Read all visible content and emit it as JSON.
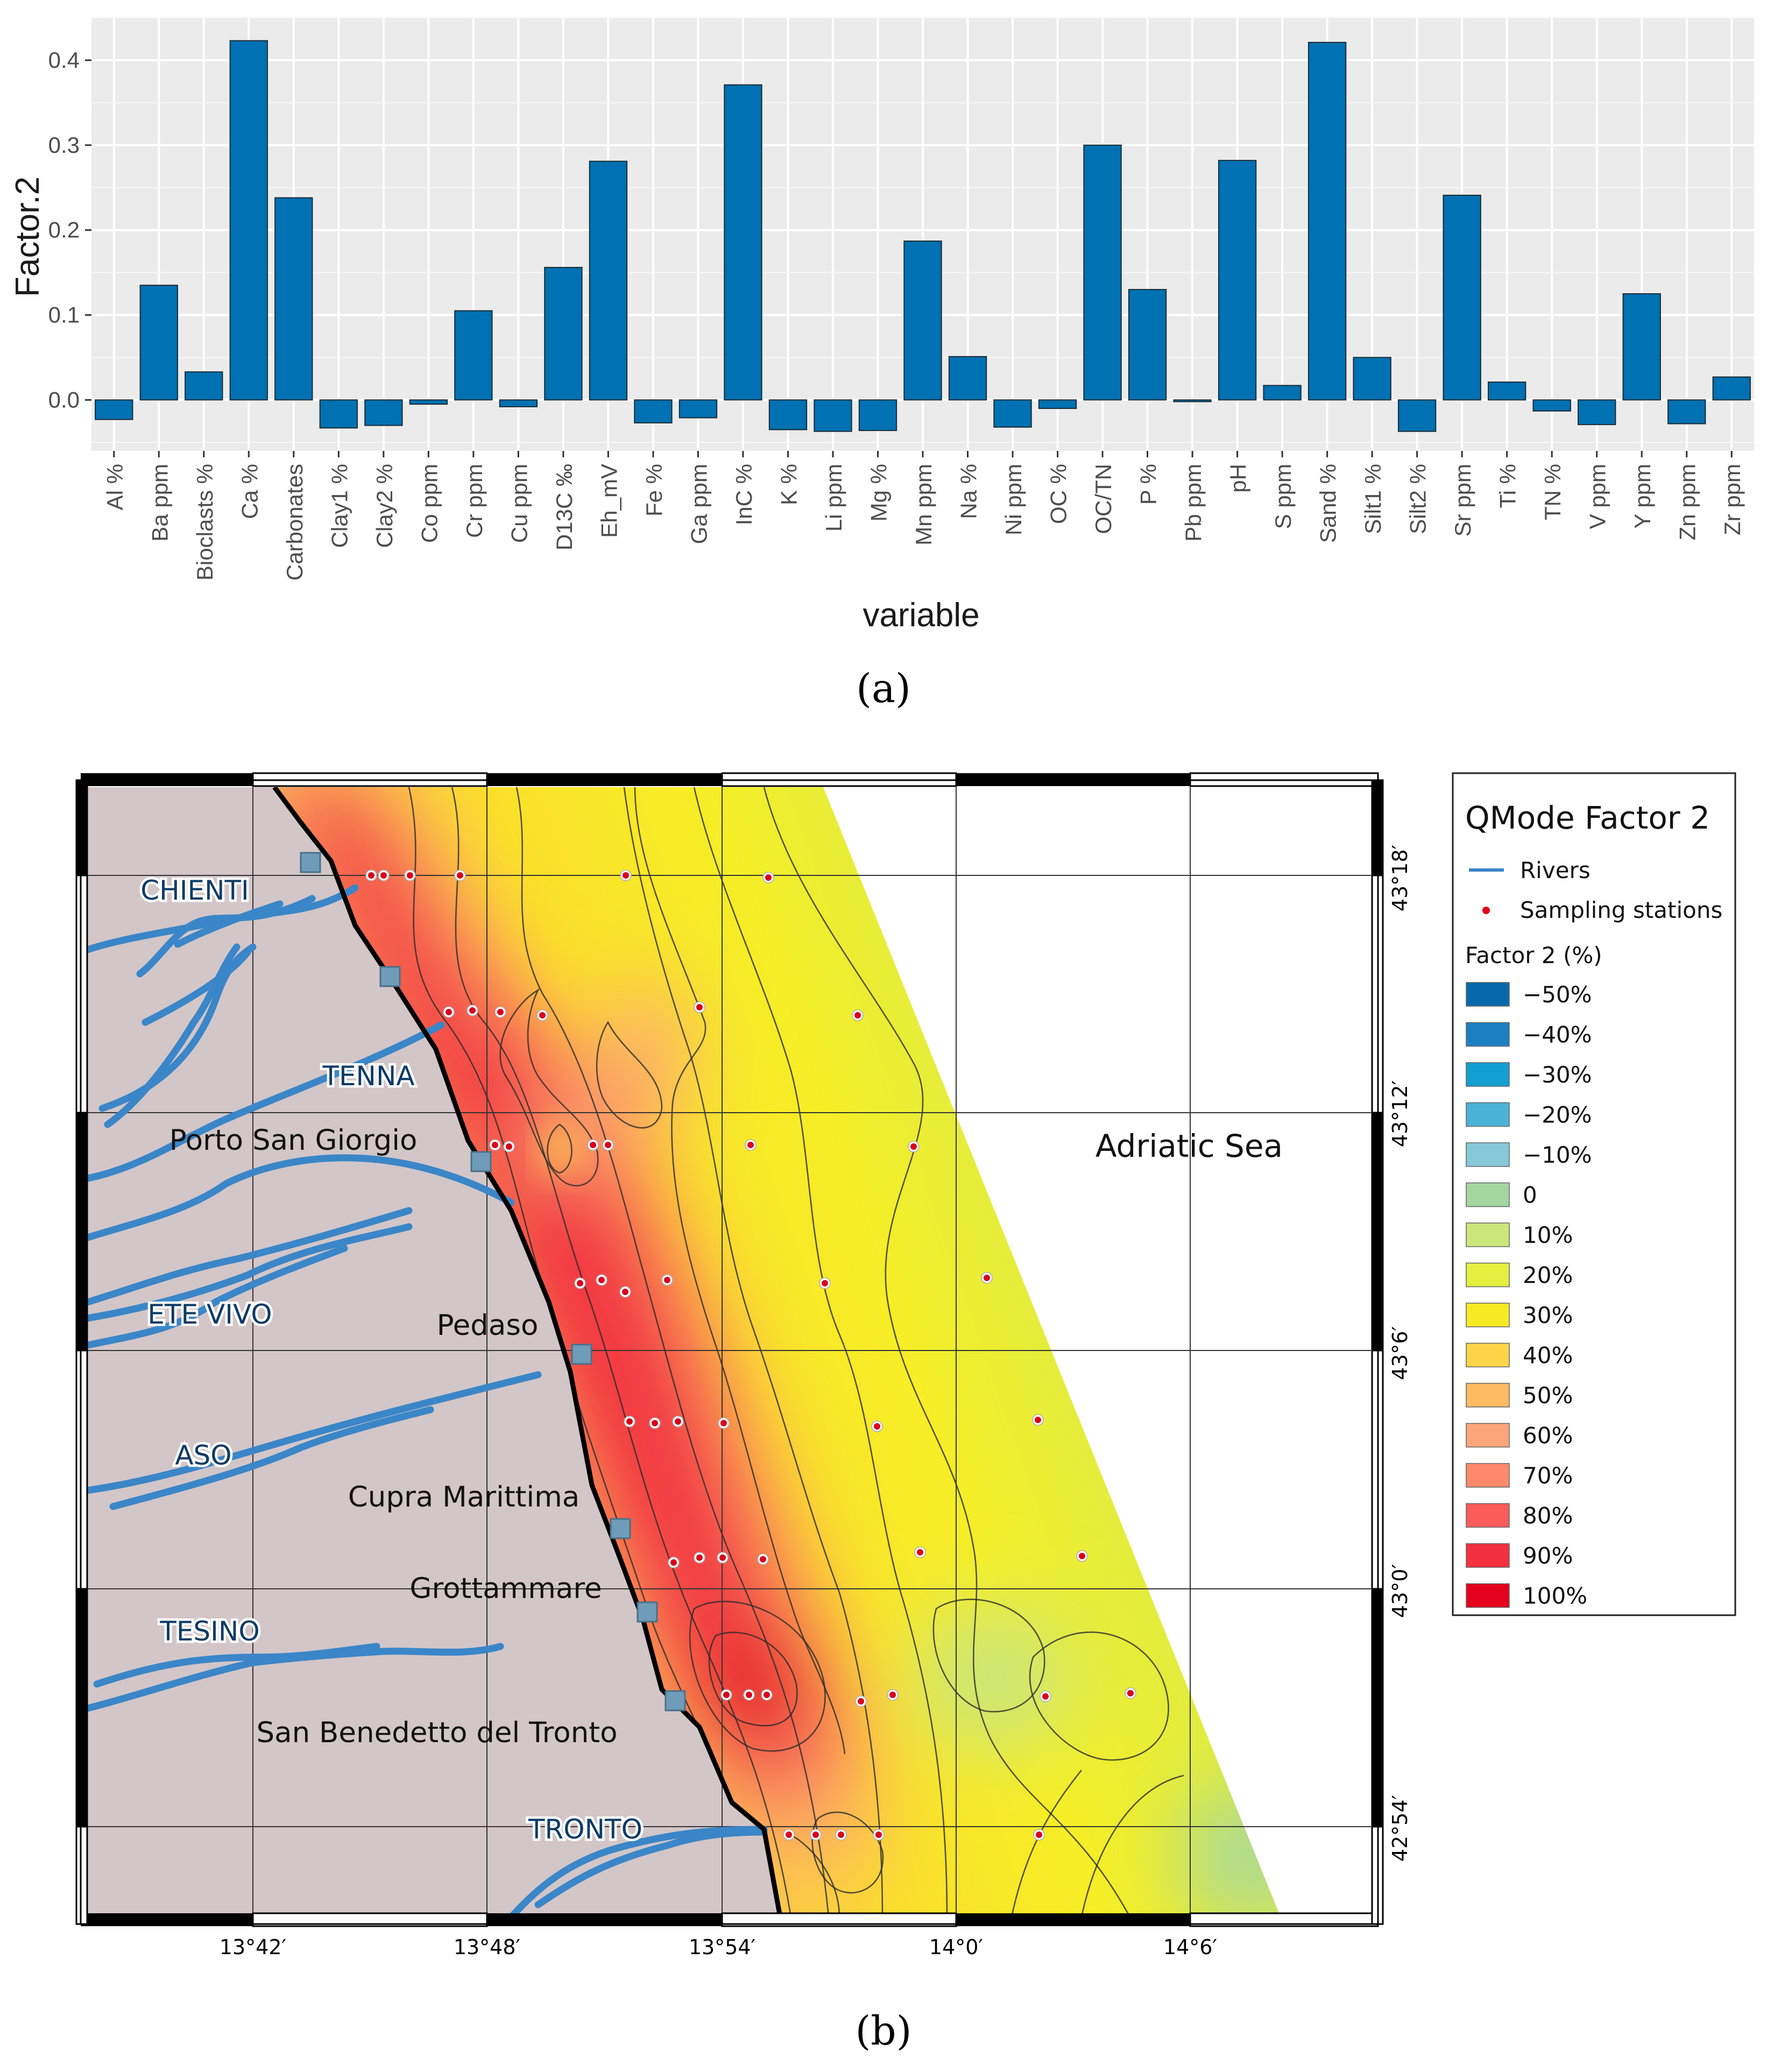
{
  "chart_data": [
    {
      "type": "bar",
      "panel": "(a)",
      "xlabel": "variable",
      "ylabel": "Factor.2",
      "ylim": [
        -0.06,
        0.45
      ],
      "yticks": [
        "0.0",
        "0.1",
        "0.2",
        "0.3",
        "0.4"
      ],
      "grid": true,
      "bar_color": "#0071b2",
      "categories": [
        "Al %",
        "Ba ppm",
        "Bioclasts %",
        "Ca %",
        "Carbonates",
        "Clay1 %",
        "Clay2 %",
        "Co ppm",
        "Cr ppm",
        "Cu ppm",
        "D13C ‰",
        "Eh_mV",
        "Fe %",
        "Ga ppm",
        "InC %",
        "K %",
        "Li ppm",
        "Mg %",
        "Mn ppm",
        "Na %",
        "Ni ppm",
        "OC %",
        "OC/TN",
        "P %",
        "Pb ppm",
        "pH",
        "S ppm",
        "Sand %",
        "Silt1 %",
        "Silt2 %",
        "Sr ppm",
        "Ti %",
        "TN %",
        "V ppm",
        "Y ppm",
        "Zn ppm",
        "Zr ppm"
      ],
      "values": [
        -0.023,
        0.135,
        0.033,
        0.423,
        0.238,
        -0.033,
        -0.03,
        -0.005,
        0.105,
        -0.008,
        0.156,
        0.281,
        -0.027,
        -0.021,
        0.371,
        -0.035,
        -0.037,
        -0.036,
        0.187,
        0.051,
        -0.032,
        -0.01,
        0.3,
        0.13,
        -0.002,
        0.282,
        0.017,
        0.421,
        0.05,
        -0.037,
        0.241,
        0.021,
        -0.013,
        -0.029,
        0.125,
        -0.028,
        0.027
      ]
    },
    {
      "type": "heatmap",
      "panel": "(b)",
      "title": "QMode Factor 2",
      "legend": {
        "rivers": "Rivers",
        "stations": "Sampling stations",
        "scale_title": "Factor 2 (%)",
        "classes": [
          {
            "label": "−50%",
            "color": "#0868ac"
          },
          {
            "label": "−40%",
            "color": "#1b7fc2"
          },
          {
            "label": "−30%",
            "color": "#139fd1"
          },
          {
            "label": "−20%",
            "color": "#4cb3d8"
          },
          {
            "label": "−10%",
            "color": "#86c9d9"
          },
          {
            "label": "0",
            "color": "#a4d7a0"
          },
          {
            "label": "10%",
            "color": "#cbe67a"
          },
          {
            "label": "20%",
            "color": "#e4ef3f"
          },
          {
            "label": "30%",
            "color": "#f7ea24"
          },
          {
            "label": "40%",
            "color": "#fcd448"
          },
          {
            "label": "50%",
            "color": "#fdbb62"
          },
          {
            "label": "60%",
            "color": "#fda57a"
          },
          {
            "label": "70%",
            "color": "#fd8a6b"
          },
          {
            "label": "80%",
            "color": "#fb5b5b"
          },
          {
            "label": "90%",
            "color": "#f2303f"
          },
          {
            "label": "100%",
            "color": "#e4001c"
          }
        ]
      },
      "longitude_ticks": [
        "13°42′",
        "13°48′",
        "13°54′",
        "14°0′",
        "14°6′"
      ],
      "latitude_ticks": [
        "43°18′",
        "43°12′",
        "43°6′",
        "43°0′",
        "42°54′"
      ],
      "sea_label": "Adriatic Sea",
      "towns": [
        "Porto San Giorgio",
        "Pedaso",
        "Cupra Marittima",
        "Grottammare",
        "San Benedetto del Tronto"
      ],
      "rivers": [
        "CHIENTI",
        "TENNA",
        "ETE VIVO",
        "ASO",
        "TESINO",
        "TRONTO"
      ]
    }
  ]
}
